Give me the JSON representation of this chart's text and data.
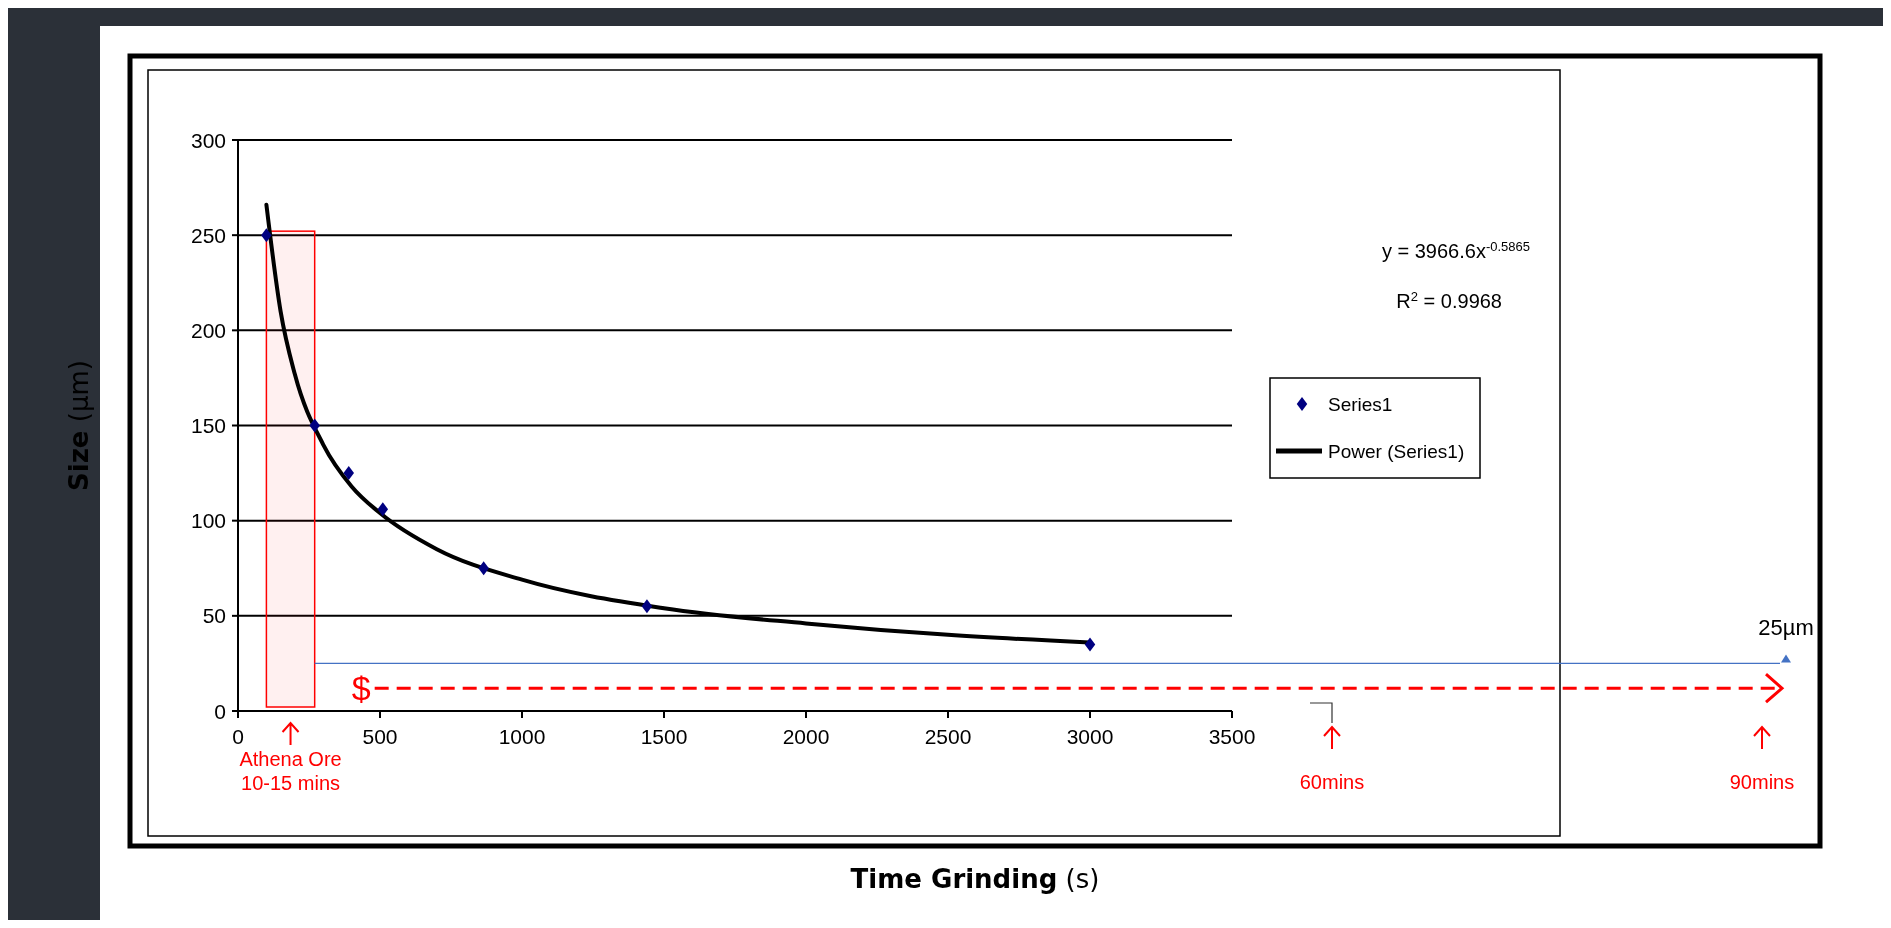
{
  "chart_data": {
    "type": "scatter",
    "xlabel": "Time Grinding (s)",
    "ylabel": "Size (µm)",
    "xlim": [
      0,
      3500
    ],
    "xticks": [
      0,
      500,
      1000,
      1500,
      2000,
      2500,
      3000,
      3500
    ],
    "ylim": [
      0,
      300
    ],
    "yticks": [
      0,
      50,
      100,
      150,
      200,
      250,
      300
    ],
    "grid": "y",
    "legend": "right",
    "series": [
      {
        "name": "Series1",
        "marker": "diamond",
        "color": "#000080",
        "x": [
          100,
          270,
          390,
          510,
          865,
          1440,
          3000
        ],
        "values": [
          250,
          150,
          125,
          106,
          75,
          55,
          35
        ]
      },
      {
        "name": "Power (Series1)",
        "type": "line",
        "color": "#000000",
        "x": [
          100,
          150,
          200,
          300,
          400,
          500,
          700,
          1000,
          1500,
          2000,
          2500,
          3000
        ],
        "values": [
          266,
          210,
          177,
          140,
          118,
          104,
          85,
          69,
          54,
          46,
          40,
          36
        ]
      }
    ],
    "bands": [
      {
        "axis": "x",
        "from": 100,
        "to": 270,
        "color": "#ff0000"
      }
    ],
    "ref_lines": [
      {
        "axis": "y",
        "value": 25,
        "label": "25µm",
        "color": "#4472c4",
        "line_style": "solid"
      },
      {
        "axis": "y",
        "value": 12,
        "label": "$",
        "color": "#ff0000",
        "line_style": "dashed"
      }
    ],
    "annotations": [
      "y = 3966.6x$^{-0.5865}$",
      "R$^{2}$ = 0.9968",
      "Athena Ore\n10-15 mins",
      "60mins",
      "90mins"
    ]
  }
}
